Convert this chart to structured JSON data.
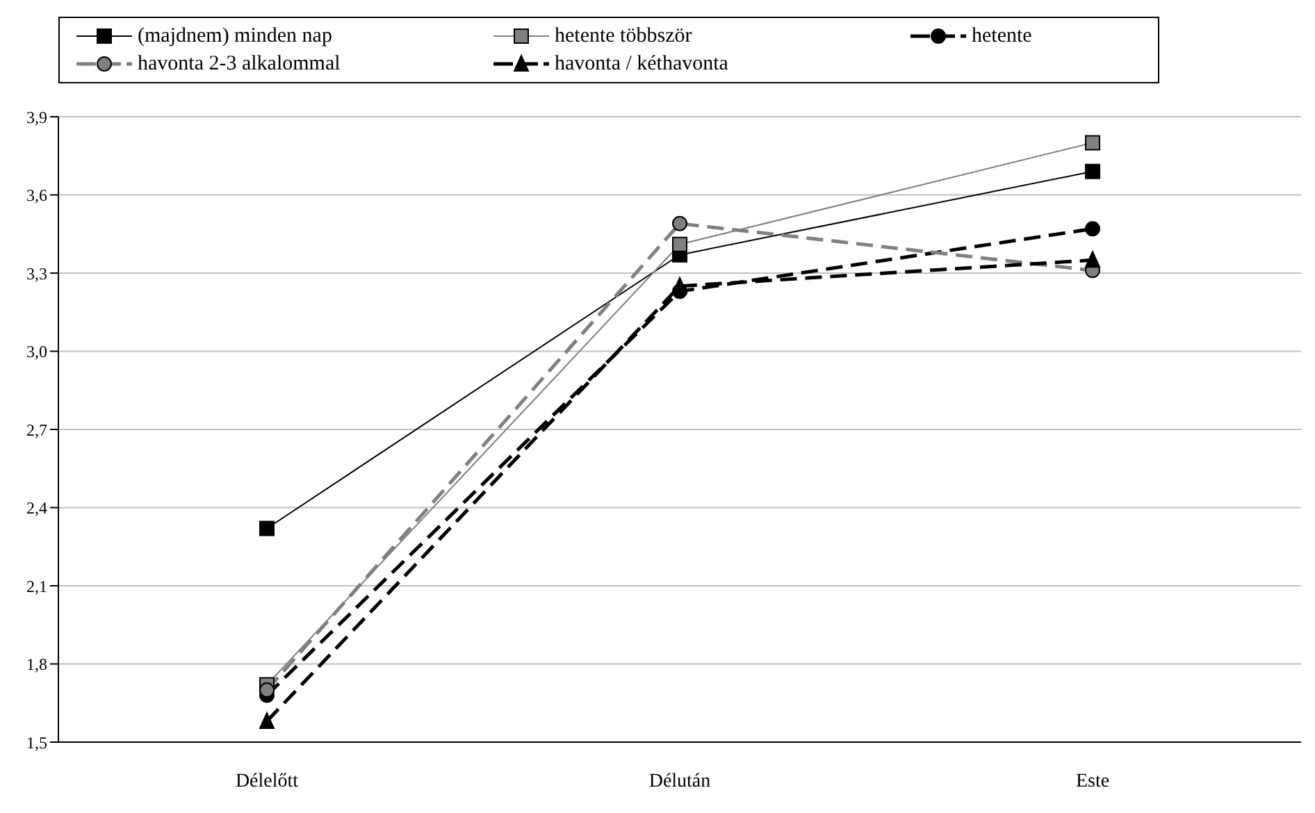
{
  "chart_data": {
    "type": "line",
    "categories": [
      "Délelőtt",
      "Délután",
      "Este"
    ],
    "series": [
      {
        "name": "(majdnem) minden nap",
        "color": "#000000",
        "marker": "square",
        "line_style": "solid",
        "values": [
          2.32,
          3.37,
          3.69
        ]
      },
      {
        "name": "hetente többször",
        "color": "#808080",
        "marker": "square",
        "line_style": "solid",
        "values": [
          1.72,
          3.41,
          3.8
        ]
      },
      {
        "name": "hetente",
        "color": "#000000",
        "marker": "circle",
        "line_style": "dashed",
        "values": [
          1.68,
          3.23,
          3.47
        ]
      },
      {
        "name": "havonta 2-3 alkalommal",
        "color": "#808080",
        "marker": "circle",
        "line_style": "dashed",
        "values": [
          1.7,
          3.49,
          3.31
        ]
      },
      {
        "name": "havonta / kéthavonta",
        "color": "#000000",
        "marker": "triangle",
        "line_style": "dashed",
        "values": [
          1.58,
          3.25,
          3.35
        ]
      }
    ],
    "ylim": [
      1.5,
      3.9
    ],
    "yticks": [
      {
        "value": 1.5,
        "label": "1,5"
      },
      {
        "value": 1.8,
        "label": "1,8"
      },
      {
        "value": 2.1,
        "label": "2,1"
      },
      {
        "value": 2.4,
        "label": "2,4"
      },
      {
        "value": 2.7,
        "label": "2,7"
      },
      {
        "value": 3.0,
        "label": "3,0"
      },
      {
        "value": 3.3,
        "label": "3,3"
      },
      {
        "value": 3.6,
        "label": "3,6"
      },
      {
        "value": 3.9,
        "label": "3,9"
      }
    ],
    "grid": "y",
    "legend": "top"
  }
}
